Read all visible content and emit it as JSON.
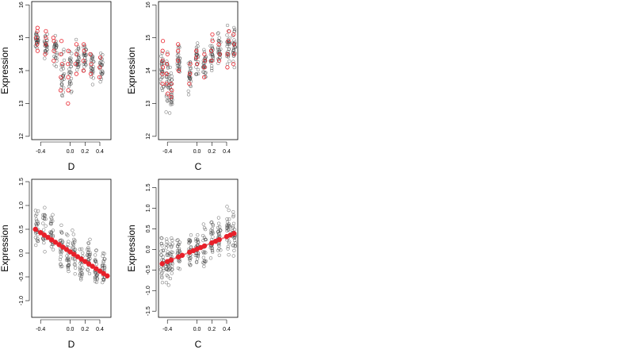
{
  "chart_data": [
    {
      "type": "scatter",
      "xlabel": "D",
      "ylabel": "Expression",
      "xlim": [
        -0.52,
        0.55
      ],
      "ylim": [
        11.9,
        16.1
      ],
      "xticks": [
        -0.4,
        0.0,
        0.2,
        0.4
      ],
      "xtick_labels": [
        "-0.4",
        "0.0",
        "0.2",
        "0.4"
      ],
      "yticks": [
        12,
        13,
        14,
        15,
        16
      ],
      "ytick_labels": [
        "12",
        "13",
        "14",
        "15",
        "16"
      ],
      "point_color": "#444444",
      "fit_color": "#e8202a",
      "raw_groups": [
        {
          "x": -0.45,
          "center": 14.9,
          "spread": 0.35
        },
        {
          "x": -0.33,
          "center": 14.8,
          "spread": 0.4
        },
        {
          "x": -0.2,
          "center": 14.6,
          "spread": 0.5
        },
        {
          "x": -0.1,
          "center": 13.9,
          "spread": 0.8
        },
        {
          "x": 0.0,
          "center": 14.0,
          "spread": 0.7
        },
        {
          "x": 0.1,
          "center": 14.3,
          "spread": 0.5
        },
        {
          "x": 0.2,
          "center": 14.4,
          "spread": 0.4
        },
        {
          "x": 0.3,
          "center": 14.2,
          "spread": 0.5
        },
        {
          "x": 0.42,
          "center": 14.1,
          "spread": 0.4
        }
      ],
      "fit_groups": [
        {
          "x": -0.45,
          "values": [
            14.6,
            14.8,
            15.0,
            15.2,
            15.3
          ]
        },
        {
          "x": -0.33,
          "values": [
            14.5,
            14.8,
            15.0,
            15.2
          ]
        },
        {
          "x": -0.22,
          "values": [
            14.3,
            14.6,
            14.9,
            15.0
          ]
        },
        {
          "x": -0.12,
          "values": [
            13.4,
            13.8,
            14.2,
            14.5,
            14.9
          ]
        },
        {
          "x": -0.03,
          "values": [
            13.0,
            13.4,
            13.8,
            14.2,
            14.6
          ]
        },
        {
          "x": 0.08,
          "values": [
            13.9,
            14.2,
            14.5,
            14.8
          ]
        },
        {
          "x": 0.18,
          "values": [
            14.0,
            14.3,
            14.6,
            14.8
          ]
        },
        {
          "x": 0.28,
          "values": [
            13.9,
            14.2,
            14.5
          ]
        },
        {
          "x": 0.4,
          "values": [
            13.8,
            14.1,
            14.4
          ]
        }
      ]
    },
    {
      "type": "scatter",
      "xlabel": "C",
      "ylabel": "Expression",
      "xlim": [
        -0.52,
        0.55
      ],
      "ylim": [
        11.9,
        16.1
      ],
      "xticks": [
        -0.4,
        0.0,
        0.2,
        0.4
      ],
      "xtick_labels": [
        "-0.4",
        "0.0",
        "0.2",
        "0.4"
      ],
      "yticks": [
        12,
        13,
        14,
        15,
        16
      ],
      "ytick_labels": [
        "12",
        "13",
        "14",
        "15",
        "16"
      ],
      "point_color": "#444444",
      "fit_color": "#e8202a",
      "raw_groups": [
        {
          "x": -0.47,
          "center": 14.0,
          "spread": 0.7
        },
        {
          "x": -0.4,
          "center": 13.7,
          "spread": 0.8
        },
        {
          "x": -0.35,
          "center": 13.5,
          "spread": 0.7
        },
        {
          "x": -0.25,
          "center": 14.3,
          "spread": 0.5
        },
        {
          "x": -0.1,
          "center": 13.8,
          "spread": 0.5
        },
        {
          "x": 0.0,
          "center": 14.4,
          "spread": 0.5
        },
        {
          "x": 0.1,
          "center": 14.2,
          "spread": 0.4
        },
        {
          "x": 0.2,
          "center": 14.5,
          "spread": 0.5
        },
        {
          "x": 0.3,
          "center": 14.6,
          "spread": 0.5
        },
        {
          "x": 0.42,
          "center": 14.8,
          "spread": 0.6
        },
        {
          "x": 0.5,
          "center": 14.7,
          "spread": 0.6
        }
      ],
      "fit_groups": [
        {
          "x": -0.47,
          "values": [
            13.6,
            13.9,
            14.1,
            14.3,
            14.6,
            14.9
          ]
        },
        {
          "x": -0.4,
          "values": [
            13.3,
            13.6,
            13.9,
            14.2,
            14.5
          ]
        },
        {
          "x": -0.35,
          "values": [
            13.2,
            13.4,
            13.6
          ]
        },
        {
          "x": -0.25,
          "values": [
            14.0,
            14.3,
            14.6,
            14.8
          ]
        },
        {
          "x": -0.1,
          "values": [
            13.6,
            13.9,
            14.2
          ]
        },
        {
          "x": 0.0,
          "values": [
            14.2,
            14.4,
            14.6
          ]
        },
        {
          "x": 0.1,
          "values": [
            13.8,
            14.1,
            14.3,
            14.5
          ]
        },
        {
          "x": 0.2,
          "values": [
            14.3,
            14.6,
            14.9,
            15.1
          ]
        },
        {
          "x": 0.3,
          "values": [
            14.3,
            14.5,
            14.8
          ]
        },
        {
          "x": 0.42,
          "values": [
            14.1,
            14.5,
            14.9,
            15.2
          ]
        },
        {
          "x": 0.5,
          "values": [
            14.2,
            14.5,
            14.8,
            15.1
          ]
        }
      ]
    },
    {
      "type": "scatter",
      "xlabel": "D",
      "ylabel": "Expression",
      "xlim": [
        -0.52,
        0.55
      ],
      "ylim": [
        -1.35,
        1.55
      ],
      "xticks": [
        -0.4,
        0.0,
        0.2,
        0.4
      ],
      "xtick_labels": [
        "-0.4",
        "0.0",
        "0.2",
        "0.4"
      ],
      "yticks": [
        -1.0,
        -0.5,
        0.0,
        0.5,
        1.0,
        1.5
      ],
      "ytick_labels": [
        "-1.0",
        "-0.5",
        "0.0",
        "0.5",
        "1.0",
        "1.5"
      ],
      "point_color": "#444444",
      "fit_color": "#e8202a",
      "raw_groups": [
        {
          "x": -0.45,
          "center": 0.5,
          "spread": 0.5
        },
        {
          "x": -0.35,
          "center": 0.45,
          "spread": 0.5
        },
        {
          "x": -0.25,
          "center": 0.3,
          "spread": 0.5
        },
        {
          "x": -0.12,
          "center": 0.05,
          "spread": 0.5
        },
        {
          "x": -0.03,
          "center": -0.1,
          "spread": 0.5
        },
        {
          "x": 0.05,
          "center": -0.05,
          "spread": 0.45
        },
        {
          "x": 0.15,
          "center": -0.2,
          "spread": 0.45
        },
        {
          "x": 0.25,
          "center": -0.15,
          "spread": 0.45
        },
        {
          "x": 0.35,
          "center": -0.3,
          "spread": 0.4
        },
        {
          "x": 0.45,
          "center": -0.3,
          "spread": 0.35
        }
      ],
      "fit_line": {
        "x": [
          -0.47,
          0.52
        ],
        "y": [
          0.5,
          -0.5
        ]
      },
      "fit_points": [
        -0.47,
        -0.4,
        -0.35,
        -0.3,
        -0.25,
        -0.2,
        -0.15,
        -0.1,
        -0.05,
        0.0,
        0.05,
        0.1,
        0.15,
        0.2,
        0.25,
        0.3,
        0.35,
        0.4,
        0.45,
        0.5
      ]
    },
    {
      "type": "scatter",
      "xlabel": "C",
      "ylabel": "Expression",
      "xlim": [
        -0.52,
        0.55
      ],
      "ylim": [
        -1.65,
        1.7
      ],
      "xticks": [
        -0.4,
        0.0,
        0.2,
        0.4
      ],
      "xtick_labels": [
        "-0.4",
        "0.0",
        "0.2",
        "0.4"
      ],
      "yticks": [
        -1.5,
        -1.0,
        -0.5,
        0.0,
        0.5,
        1.0,
        1.5
      ],
      "ytick_labels": [
        "-1.5",
        "-1.0",
        "-0.5",
        "0.0",
        "0.5",
        "1.0",
        "1.5"
      ],
      "point_color": "#444444",
      "fit_color": "#e8202a",
      "raw_groups": [
        {
          "x": -0.47,
          "center": -0.3,
          "spread": 0.6
        },
        {
          "x": -0.4,
          "center": -0.3,
          "spread": 0.65
        },
        {
          "x": -0.35,
          "center": -0.2,
          "spread": 0.5
        },
        {
          "x": -0.25,
          "center": -0.1,
          "spread": 0.45
        },
        {
          "x": -0.1,
          "center": 0.0,
          "spread": 0.45
        },
        {
          "x": 0.0,
          "center": 0.05,
          "spread": 0.45
        },
        {
          "x": 0.1,
          "center": 0.1,
          "spread": 0.45
        },
        {
          "x": 0.2,
          "center": 0.25,
          "spread": 0.45
        },
        {
          "x": 0.3,
          "center": 0.3,
          "spread": 0.5
        },
        {
          "x": 0.42,
          "center": 0.4,
          "spread": 0.55
        },
        {
          "x": 0.5,
          "center": 0.4,
          "spread": 0.6
        }
      ],
      "fit_line": {
        "x": [
          -0.47,
          0.52
        ],
        "y": [
          -0.35,
          0.4
        ]
      },
      "fit_points": [
        -0.47,
        -0.4,
        -0.35,
        -0.25,
        -0.2,
        -0.1,
        -0.05,
        0.0,
        0.05,
        0.1,
        0.2,
        0.25,
        0.3,
        0.4,
        0.45,
        0.5
      ]
    }
  ]
}
